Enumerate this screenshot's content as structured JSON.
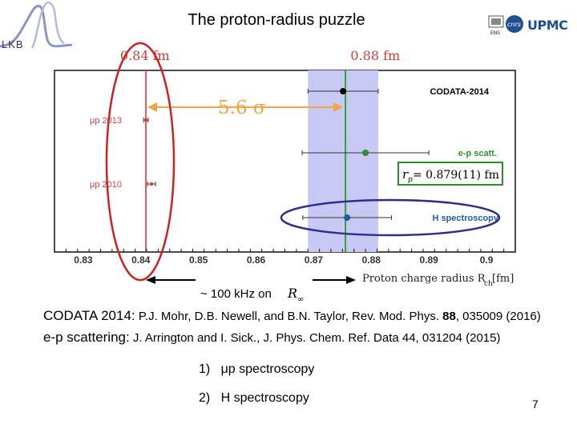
{
  "slide": {
    "title": "The proton-radius puzzle",
    "lab_logo": "LKB",
    "institution_logos": [
      "cnrs-logo",
      "upmc-logo",
      "ens-logo"
    ],
    "page_number": "7"
  },
  "chart_data": {
    "type": "scatter",
    "xlabel": "Proton charge radius R",
    "xlabel_subscript": "ch",
    "xlabel_unit": "[fm]",
    "xlim": [
      0.825,
      0.905
    ],
    "xticks": [
      0.83,
      0.84,
      0.85,
      0.86,
      0.87,
      0.88,
      0.89,
      0.9
    ],
    "xtick_labels": [
      "0.83",
      "0.84",
      "0.85",
      "0.86",
      "0.87",
      "0.88",
      "0.89",
      "0.9"
    ],
    "series": [
      {
        "name": "CODATA-2014",
        "value": 0.8751,
        "err_low": 0.0061,
        "err_high": 0.0061,
        "color": "#000000",
        "label_color": "#000000"
      },
      {
        "name": "e-p scatt.",
        "value": 0.879,
        "err_low": 0.011,
        "err_high": 0.011,
        "color": "#2e8b2e",
        "label_color": "#2a9a2a"
      },
      {
        "name": "H spectroscopy",
        "value": 0.8758,
        "err_low": 0.0077,
        "err_high": 0.0077,
        "color": "#1e5ca8",
        "label_color": "#1e5ca8"
      },
      {
        "name": "μp 2013",
        "value": 0.84087,
        "err_low": 0.0004,
        "err_high": 0.0004,
        "color": "#e23a3a",
        "label_color": "#d84040"
      },
      {
        "name": "μp 2010",
        "value": 0.84184,
        "err_low": 0.0007,
        "err_high": 0.0007,
        "color": "#e23a3a",
        "label_color": "#d84040"
      }
    ],
    "band": {
      "from": 0.869,
      "to": 0.8812,
      "color": "#c8c8f4"
    },
    "vlines": [
      {
        "x": 0.84087,
        "color": "#e8494a"
      },
      {
        "x": 0.8751,
        "color": "#2ea82e"
      }
    ],
    "top_labels": [
      {
        "text": "0.84 fm",
        "x": 0.84
      },
      {
        "text": "0.88 fm",
        "x": 0.88
      }
    ],
    "sigma_label": "5.6 σ",
    "ep_box": {
      "prefix": "r",
      "subscript": "p",
      "text": " = 0.879(11) fm"
    },
    "annotation": {
      "text": "~ 100 kHz on ",
      "symbol": "R",
      "symbol_subscript": "∞"
    }
  },
  "references": [
    {
      "label": "CODATA 2014:",
      "text": "P.J. Mohr, D.B. Newell, and B.N. Taylor, Rev. Mod. Phys. ",
      "bold": "88",
      "tail": ", 035009 (2016)"
    },
    {
      "label": "e-p scattering:",
      "text": "J. Arrington and I. Sick., J. Phys. Chem. Ref. Data 44, 031204 (2015)",
      "bold": "",
      "tail": ""
    }
  ],
  "list": [
    {
      "number": "1)",
      "text": "μp spectroscopy"
    },
    {
      "number": "2)",
      "text": "H spectroscopy"
    }
  ],
  "colors": {
    "highlight_red": "#cc2222",
    "highlight_navy": "#2a2f8a",
    "sigma_orange": "#f5a442",
    "box_green": "#2e8b2e"
  }
}
